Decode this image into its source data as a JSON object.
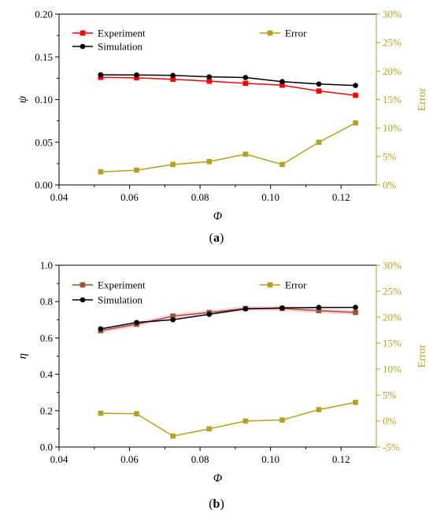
{
  "colors": {
    "experiment_a": "#ff0000",
    "experiment_b": "#a0522d",
    "simulation": "#000000",
    "error": "#b5a11c",
    "error_axis_text": "#b5a11c",
    "fill_b": "#f4c2d6"
  },
  "chart_data": [
    {
      "type": "line",
      "panel_label": "(a)",
      "panel_label_parts": [
        "(",
        "a",
        ")"
      ],
      "xlabel": "Φ",
      "ylabel": "ψ",
      "y2label": "Error",
      "xlim": [
        0.04,
        0.13
      ],
      "ylim": [
        0,
        0.2
      ],
      "y2lim": [
        0,
        30
      ],
      "x_ticks": [
        "0.04",
        "0.06",
        "0.08",
        "0.10",
        "0.12"
      ],
      "x_tick_values": [
        0.04,
        0.06,
        0.08,
        0.1,
        0.12
      ],
      "y_ticks": [
        "0.00",
        "0.05",
        "0.10",
        "0.15",
        "0.20"
      ],
      "y_tick_values": [
        0,
        0.05,
        0.1,
        0.15,
        0.2
      ],
      "y2_ticks": [
        "0%",
        "5%",
        "10%",
        "15%",
        "20%",
        "25%",
        "30%"
      ],
      "y2_tick_values": [
        0,
        5,
        10,
        15,
        20,
        25,
        30
      ],
      "legend_placement": "top-left",
      "x": [
        0.0518,
        0.062,
        0.0723,
        0.0826,
        0.0929,
        0.1033,
        0.1137,
        0.1241
      ],
      "series": [
        {
          "name": "Experiment",
          "axis": "left",
          "marker": "square",
          "values": [
            0.126,
            0.1255,
            0.1237,
            0.1215,
            0.119,
            0.1168,
            0.11,
            0.105
          ]
        },
        {
          "name": "Simulation",
          "axis": "left",
          "marker": "circle",
          "values": [
            0.129,
            0.1288,
            0.1283,
            0.1266,
            0.1258,
            0.121,
            0.1182,
            0.1165
          ]
        },
        {
          "name": "Error",
          "axis": "right",
          "marker": "square",
          "values": [
            2.3,
            2.6,
            3.6,
            4.1,
            5.4,
            3.6,
            7.5,
            10.9
          ]
        }
      ]
    },
    {
      "type": "line",
      "panel_label": "(b)",
      "panel_label_parts": [
        "(",
        "b",
        ")"
      ],
      "xlabel": "Φ",
      "ylabel": "η",
      "y2label": "Error",
      "xlim": [
        0.04,
        0.13
      ],
      "ylim": [
        0,
        1.0
      ],
      "y2lim": [
        -5,
        30
      ],
      "x_ticks": [
        "0.04",
        "0.06",
        "0.08",
        "0.10",
        "0.12"
      ],
      "x_tick_values": [
        0.04,
        0.06,
        0.08,
        0.1,
        0.12
      ],
      "y_ticks": [
        "0.0",
        "0.2",
        "0.4",
        "0.6",
        "0.8",
        "1.0"
      ],
      "y_tick_values": [
        0,
        0.2,
        0.4,
        0.6,
        0.8,
        1.0
      ],
      "y2_ticks": [
        "-5%",
        "0%",
        "5%",
        "10%",
        "15%",
        "20%",
        "25%",
        "30%"
      ],
      "y2_tick_values": [
        -5,
        0,
        5,
        10,
        15,
        20,
        25,
        30
      ],
      "legend_placement": "top-left",
      "x": [
        0.0518,
        0.062,
        0.0723,
        0.0826,
        0.0929,
        0.1033,
        0.1137,
        0.1241
      ],
      "series": [
        {
          "name": "Experiment",
          "axis": "left",
          "marker": "square",
          "values": [
            0.64,
            0.675,
            0.72,
            0.74,
            0.762,
            0.762,
            0.75,
            0.74
          ]
        },
        {
          "name": "Simulation",
          "axis": "left",
          "marker": "circle",
          "values": [
            0.65,
            0.685,
            0.7,
            0.73,
            0.76,
            0.765,
            0.768,
            0.768
          ]
        },
        {
          "name": "Error",
          "axis": "right",
          "marker": "square",
          "values": [
            1.5,
            1.4,
            -2.9,
            -1.5,
            0.0,
            0.2,
            2.2,
            3.6
          ]
        }
      ]
    }
  ]
}
